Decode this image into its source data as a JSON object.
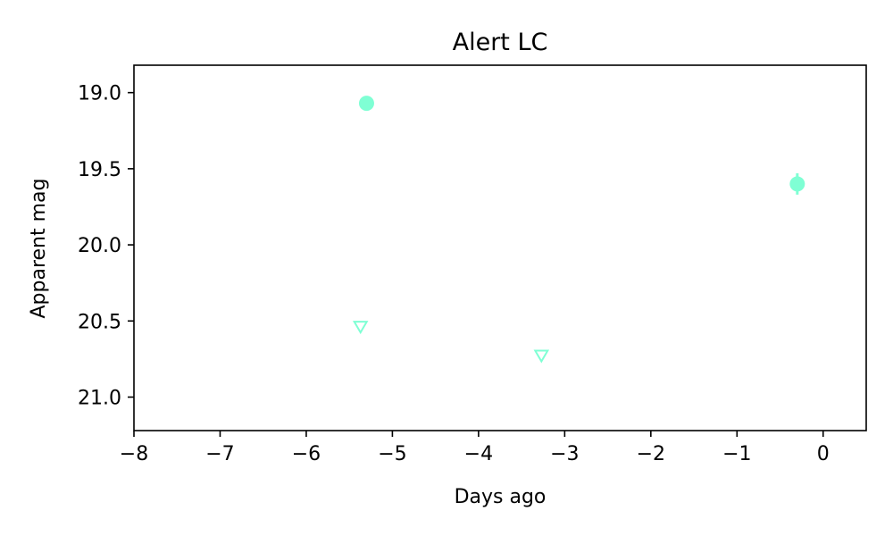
{
  "chart_data": {
    "type": "scatter",
    "title": "Alert LC",
    "xlabel": "Days ago",
    "ylabel": "Apparent mag",
    "xlim": [
      -8,
      0.5
    ],
    "ylim": [
      21.22,
      18.82
    ],
    "y_inverted": true,
    "grid": false,
    "xticks": [
      -8,
      -7,
      -6,
      -5,
      -4,
      -3,
      -2,
      -1,
      0
    ],
    "xtick_labels": [
      "−8",
      "−7",
      "−6",
      "−5",
      "−4",
      "−3",
      "−2",
      "−1",
      "0"
    ],
    "yticks": [
      19.0,
      19.5,
      20.0,
      20.5,
      21.0
    ],
    "ytick_labels": [
      "19.0",
      "19.5",
      "20.0",
      "20.5",
      "21.0"
    ],
    "color": "#7fffd4",
    "series": [
      {
        "marker": "circle",
        "x": [
          -5.3,
          -0.3
        ],
        "y": [
          19.07,
          19.6
        ],
        "yerr": [
          0.03,
          0.07
        ]
      },
      {
        "marker": "triangle-down-open",
        "x": [
          -5.37,
          -3.27
        ],
        "y": [
          20.54,
          20.73
        ]
      }
    ]
  }
}
